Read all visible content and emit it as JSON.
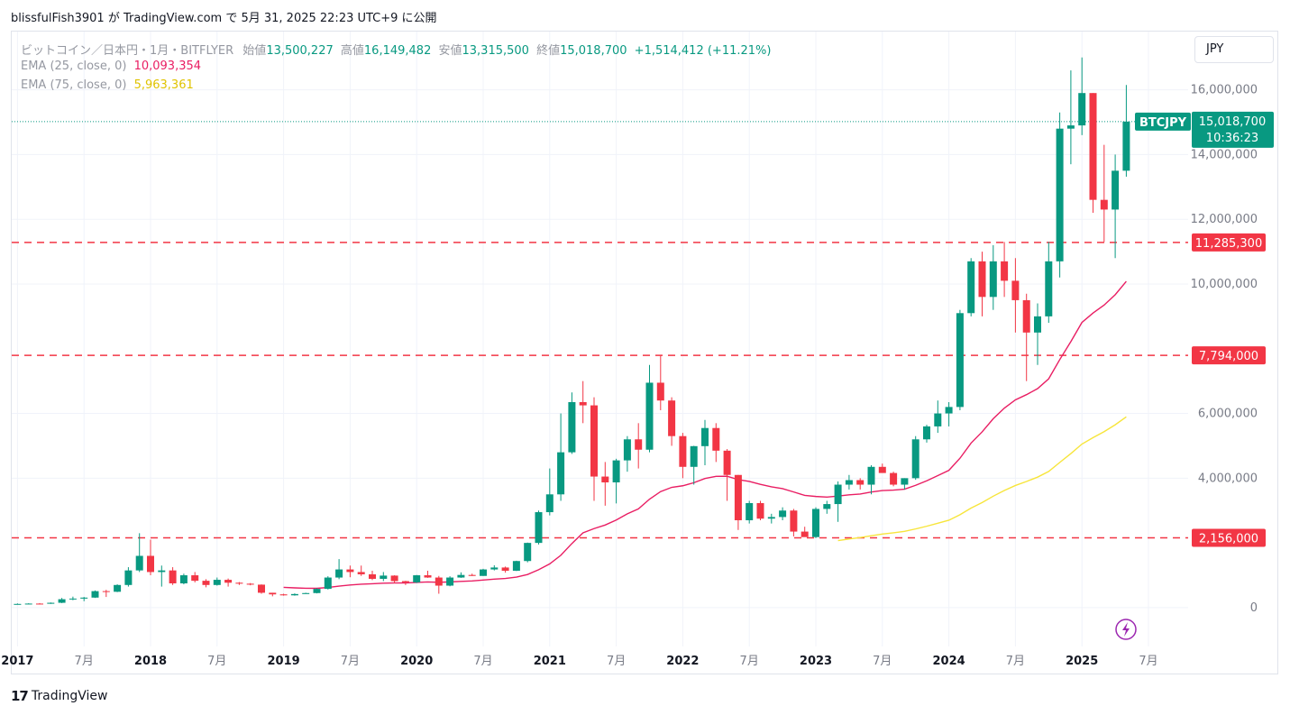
{
  "header": {
    "text": "blissfulFish3901 が TradingView.com で 5月 31, 2025 22:23 UTC+9 に公開"
  },
  "legend": {
    "symbol_title": "ビットコイン／日本円・1月・BITFLYER",
    "open_label": "始値",
    "open": "13,500,227",
    "high_label": "高値",
    "high": "16,149,482",
    "low_label": "安値",
    "low": "13,315,500",
    "close_label": "終値",
    "close": "15,018,700",
    "change": "+1,514,412 (+11.21%)",
    "ema25_label": "EMA (25, close, 0)",
    "ema25_value": "10,093,354",
    "ema75_label": "EMA (75, close, 0)",
    "ema75_value": "5,963,361"
  },
  "currency_button": "JPY",
  "price_tag": {
    "symbol": "BTCJPY",
    "price": "15,018,700",
    "countdown": "10:36:23"
  },
  "footer": {
    "brand": "TradingView"
  },
  "colors": {
    "up": "#089981",
    "down": "#f23645",
    "ema25": "#e91e63",
    "ema75": "#f7e53b",
    "hline": "#f23645",
    "axis_text": "#787b86",
    "grid": "#f0f3fa"
  },
  "chart_data": {
    "type": "candlestick",
    "y_range": [
      -1200000,
      17800000
    ],
    "y_ticks": [
      {
        "value": 0,
        "label": "0"
      },
      {
        "value": 4000000,
        "label": "4,000,000"
      },
      {
        "value": 6000000,
        "label": "6,000,000"
      },
      {
        "value": 10000000,
        "label": "10,000,000"
      },
      {
        "value": 12000000,
        "label": "12,000,000"
      },
      {
        "value": 14000000,
        "label": "14,000,000"
      },
      {
        "value": 16000000,
        "label": "16,000,000"
      }
    ],
    "x_ticks": [
      {
        "index": -12,
        "label": "2017",
        "bold": true
      },
      {
        "index": -6,
        "label": "7月",
        "bold": false
      },
      {
        "index": 0,
        "label": "2018",
        "bold": true
      },
      {
        "index": 6,
        "label": "7月",
        "bold": false
      },
      {
        "index": 12,
        "label": "2019",
        "bold": true
      },
      {
        "index": 18,
        "label": "7月",
        "bold": false
      },
      {
        "index": 24,
        "label": "2020",
        "bold": true
      },
      {
        "index": 30,
        "label": "7月",
        "bold": false
      },
      {
        "index": 36,
        "label": "2021",
        "bold": true
      },
      {
        "index": 42,
        "label": "7月",
        "bold": false
      },
      {
        "index": 48,
        "label": "2022",
        "bold": true
      },
      {
        "index": 54,
        "label": "7月",
        "bold": false
      },
      {
        "index": 60,
        "label": "2023",
        "bold": true
      },
      {
        "index": 66,
        "label": "7月",
        "bold": false
      },
      {
        "index": 72,
        "label": "2024",
        "bold": true
      },
      {
        "index": 78,
        "label": "7月",
        "bold": false
      },
      {
        "index": 84,
        "label": "2025",
        "bold": true
      },
      {
        "index": 90,
        "label": "7月",
        "bold": false
      }
    ],
    "horizontal_lines": [
      {
        "value": 11285300,
        "label": "11,285,300"
      },
      {
        "value": 7794000,
        "label": "7,794,000"
      },
      {
        "value": 2156000,
        "label": "2,156,000"
      }
    ],
    "current_price": 15018700,
    "candles": [
      {
        "t": "2017-01",
        "o": 110000,
        "h": 130000,
        "l": 100000,
        "c": 115000
      },
      {
        "t": "2017-02",
        "o": 115000,
        "h": 135000,
        "l": 110000,
        "c": 125000
      },
      {
        "t": "2017-03",
        "o": 125000,
        "h": 140000,
        "l": 100000,
        "c": 120000
      },
      {
        "t": "2017-04",
        "o": 120000,
        "h": 160000,
        "l": 115000,
        "c": 150000
      },
      {
        "t": "2017-05",
        "o": 150000,
        "h": 300000,
        "l": 140000,
        "c": 260000
      },
      {
        "t": "2017-06",
        "o": 260000,
        "h": 340000,
        "l": 230000,
        "c": 280000
      },
      {
        "t": "2017-07",
        "o": 280000,
        "h": 330000,
        "l": 200000,
        "c": 310000
      },
      {
        "t": "2017-08",
        "o": 310000,
        "h": 530000,
        "l": 300000,
        "c": 510000
      },
      {
        "t": "2017-09",
        "o": 510000,
        "h": 550000,
        "l": 330000,
        "c": 490000
      },
      {
        "t": "2017-10",
        "o": 490000,
        "h": 720000,
        "l": 480000,
        "c": 700000
      },
      {
        "t": "2017-11",
        "o": 700000,
        "h": 1250000,
        "l": 650000,
        "c": 1150000
      },
      {
        "t": "2017-12",
        "o": 1150000,
        "h": 2300000,
        "l": 1100000,
        "c": 1600000
      },
      {
        "t": "2018-01",
        "o": 1600000,
        "h": 2100000,
        "l": 1000000,
        "c": 1100000
      },
      {
        "t": "2018-02",
        "o": 1100000,
        "h": 1300000,
        "l": 650000,
        "c": 1150000
      },
      {
        "t": "2018-03",
        "o": 1150000,
        "h": 1250000,
        "l": 700000,
        "c": 750000
      },
      {
        "t": "2018-04",
        "o": 750000,
        "h": 1050000,
        "l": 720000,
        "c": 1000000
      },
      {
        "t": "2018-05",
        "o": 1000000,
        "h": 1100000,
        "l": 780000,
        "c": 830000
      },
      {
        "t": "2018-06",
        "o": 830000,
        "h": 880000,
        "l": 630000,
        "c": 700000
      },
      {
        "t": "2018-07",
        "o": 700000,
        "h": 930000,
        "l": 680000,
        "c": 860000
      },
      {
        "t": "2018-08",
        "o": 860000,
        "h": 900000,
        "l": 650000,
        "c": 770000
      },
      {
        "t": "2018-09",
        "o": 770000,
        "h": 790000,
        "l": 700000,
        "c": 740000
      },
      {
        "t": "2018-10",
        "o": 740000,
        "h": 760000,
        "l": 690000,
        "c": 710000
      },
      {
        "t": "2018-11",
        "o": 710000,
        "h": 720000,
        "l": 430000,
        "c": 460000
      },
      {
        "t": "2018-12",
        "o": 460000,
        "h": 460000,
        "l": 350000,
        "c": 410000
      },
      {
        "t": "2019-01",
        "o": 410000,
        "h": 430000,
        "l": 370000,
        "c": 380000
      },
      {
        "t": "2019-02",
        "o": 380000,
        "h": 440000,
        "l": 370000,
        "c": 420000
      },
      {
        "t": "2019-03",
        "o": 420000,
        "h": 460000,
        "l": 430000,
        "c": 450000
      },
      {
        "t": "2019-04",
        "o": 450000,
        "h": 600000,
        "l": 440000,
        "c": 580000
      },
      {
        "t": "2019-05",
        "o": 580000,
        "h": 970000,
        "l": 560000,
        "c": 930000
      },
      {
        "t": "2019-06",
        "o": 930000,
        "h": 1500000,
        "l": 880000,
        "c": 1180000
      },
      {
        "t": "2019-07",
        "o": 1180000,
        "h": 1300000,
        "l": 940000,
        "c": 1100000
      },
      {
        "t": "2019-08",
        "o": 1100000,
        "h": 1300000,
        "l": 980000,
        "c": 1030000
      },
      {
        "t": "2019-09",
        "o": 1030000,
        "h": 1140000,
        "l": 850000,
        "c": 890000
      },
      {
        "t": "2019-10",
        "o": 890000,
        "h": 1100000,
        "l": 820000,
        "c": 990000
      },
      {
        "t": "2019-11",
        "o": 990000,
        "h": 1000000,
        "l": 750000,
        "c": 820000
      },
      {
        "t": "2019-12",
        "o": 820000,
        "h": 830000,
        "l": 700000,
        "c": 780000
      },
      {
        "t": "2020-01",
        "o": 780000,
        "h": 1010000,
        "l": 760000,
        "c": 1000000
      },
      {
        "t": "2020-02",
        "o": 1000000,
        "h": 1140000,
        "l": 920000,
        "c": 930000
      },
      {
        "t": "2020-03",
        "o": 930000,
        "h": 980000,
        "l": 430000,
        "c": 680000
      },
      {
        "t": "2020-04",
        "o": 680000,
        "h": 970000,
        "l": 660000,
        "c": 930000
      },
      {
        "t": "2020-05",
        "o": 930000,
        "h": 1090000,
        "l": 920000,
        "c": 1010000
      },
      {
        "t": "2020-06",
        "o": 1010000,
        "h": 1050000,
        "l": 980000,
        "c": 980000
      },
      {
        "t": "2020-07",
        "o": 980000,
        "h": 1200000,
        "l": 980000,
        "c": 1180000
      },
      {
        "t": "2020-08",
        "o": 1180000,
        "h": 1310000,
        "l": 1150000,
        "c": 1240000
      },
      {
        "t": "2020-09",
        "o": 1240000,
        "h": 1270000,
        "l": 1080000,
        "c": 1140000
      },
      {
        "t": "2020-10",
        "o": 1140000,
        "h": 1450000,
        "l": 1130000,
        "c": 1440000
      },
      {
        "t": "2020-11",
        "o": 1440000,
        "h": 2010000,
        "l": 1400000,
        "c": 2000000
      },
      {
        "t": "2020-12",
        "o": 2000000,
        "h": 3000000,
        "l": 1950000,
        "c": 2950000
      },
      {
        "t": "2021-01",
        "o": 2950000,
        "h": 4300000,
        "l": 2850000,
        "c": 3500000
      },
      {
        "t": "2021-02",
        "o": 3500000,
        "h": 6000000,
        "l": 3300000,
        "c": 4800000
      },
      {
        "t": "2021-03",
        "o": 4800000,
        "h": 6650000,
        "l": 4750000,
        "c": 6350000
      },
      {
        "t": "2021-04",
        "o": 6350000,
        "h": 7000000,
        "l": 5700000,
        "c": 6250000
      },
      {
        "t": "2021-05",
        "o": 6250000,
        "h": 6500000,
        "l": 3300000,
        "c": 4050000
      },
      {
        "t": "2021-06",
        "o": 4050000,
        "h": 4500000,
        "l": 3150000,
        "c": 3870000
      },
      {
        "t": "2021-07",
        "o": 3870000,
        "h": 4600000,
        "l": 3220000,
        "c": 4550000
      },
      {
        "t": "2021-08",
        "o": 4550000,
        "h": 5300000,
        "l": 4200000,
        "c": 5200000
      },
      {
        "t": "2021-09",
        "o": 5200000,
        "h": 5700000,
        "l": 4300000,
        "c": 4880000
      },
      {
        "t": "2021-10",
        "o": 4880000,
        "h": 7500000,
        "l": 4800000,
        "c": 6950000
      },
      {
        "t": "2021-11",
        "o": 6950000,
        "h": 7800000,
        "l": 6100000,
        "c": 6400000
      },
      {
        "t": "2021-12",
        "o": 6400000,
        "h": 6500000,
        "l": 5000000,
        "c": 5300000
      },
      {
        "t": "2022-01",
        "o": 5300000,
        "h": 5400000,
        "l": 4000000,
        "c": 4350000
      },
      {
        "t": "2022-02",
        "o": 4350000,
        "h": 5000000,
        "l": 3800000,
        "c": 4990000
      },
      {
        "t": "2022-03",
        "o": 4990000,
        "h": 5800000,
        "l": 4400000,
        "c": 5550000
      },
      {
        "t": "2022-04",
        "o": 5550000,
        "h": 5700000,
        "l": 4500000,
        "c": 4850000
      },
      {
        "t": "2022-05",
        "o": 4850000,
        "h": 4900000,
        "l": 3300000,
        "c": 4100000
      },
      {
        "t": "2022-06",
        "o": 4100000,
        "h": 4100000,
        "l": 2400000,
        "c": 2700000
      },
      {
        "t": "2022-07",
        "o": 2700000,
        "h": 3300000,
        "l": 2600000,
        "c": 3230000
      },
      {
        "t": "2022-08",
        "o": 3230000,
        "h": 3300000,
        "l": 2700000,
        "c": 2750000
      },
      {
        "t": "2022-09",
        "o": 2750000,
        "h": 2900000,
        "l": 2600000,
        "c": 2800000
      },
      {
        "t": "2022-10",
        "o": 2800000,
        "h": 3100000,
        "l": 2700000,
        "c": 3000000
      },
      {
        "t": "2022-11",
        "o": 3000000,
        "h": 3050000,
        "l": 2200000,
        "c": 2350000
      },
      {
        "t": "2022-12",
        "o": 2350000,
        "h": 2500000,
        "l": 2200000,
        "c": 2180000
      },
      {
        "t": "2023-01",
        "o": 2180000,
        "h": 3100000,
        "l": 2150000,
        "c": 3050000
      },
      {
        "t": "2023-02",
        "o": 3050000,
        "h": 3300000,
        "l": 2900000,
        "c": 3200000
      },
      {
        "t": "2023-03",
        "o": 3200000,
        "h": 3900000,
        "l": 2650000,
        "c": 3800000
      },
      {
        "t": "2023-04",
        "o": 3800000,
        "h": 4100000,
        "l": 3650000,
        "c": 3940000
      },
      {
        "t": "2023-05",
        "o": 3940000,
        "h": 4000000,
        "l": 3650000,
        "c": 3800000
      },
      {
        "t": "2023-06",
        "o": 3800000,
        "h": 4400000,
        "l": 3500000,
        "c": 4350000
      },
      {
        "t": "2023-07",
        "o": 4350000,
        "h": 4450000,
        "l": 4200000,
        "c": 4160000
      },
      {
        "t": "2023-08",
        "o": 4160000,
        "h": 4200000,
        "l": 3750000,
        "c": 3800000
      },
      {
        "t": "2023-09",
        "o": 3800000,
        "h": 4000000,
        "l": 3650000,
        "c": 4000000
      },
      {
        "t": "2023-10",
        "o": 4000000,
        "h": 5300000,
        "l": 3950000,
        "c": 5200000
      },
      {
        "t": "2023-11",
        "o": 5200000,
        "h": 5650000,
        "l": 5100000,
        "c": 5600000
      },
      {
        "t": "2023-12",
        "o": 5600000,
        "h": 6400000,
        "l": 5400000,
        "c": 6000000
      },
      {
        "t": "2024-01",
        "o": 6000000,
        "h": 6350000,
        "l": 5600000,
        "c": 6200000
      },
      {
        "t": "2024-02",
        "o": 6200000,
        "h": 9200000,
        "l": 6100000,
        "c": 9100000
      },
      {
        "t": "2024-03",
        "o": 9100000,
        "h": 10800000,
        "l": 9000000,
        "c": 10700000
      },
      {
        "t": "2024-04",
        "o": 10700000,
        "h": 11000000,
        "l": 9000000,
        "c": 9600000
      },
      {
        "t": "2024-05",
        "o": 9600000,
        "h": 11200000,
        "l": 9200000,
        "c": 10700000
      },
      {
        "t": "2024-06",
        "o": 10700000,
        "h": 11300000,
        "l": 9600000,
        "c": 10100000
      },
      {
        "t": "2024-07",
        "o": 10100000,
        "h": 10800000,
        "l": 8500000,
        "c": 9500000
      },
      {
        "t": "2024-08",
        "o": 9500000,
        "h": 9700000,
        "l": 7000000,
        "c": 8500000
      },
      {
        "t": "2024-09",
        "o": 8500000,
        "h": 9400000,
        "l": 7500000,
        "c": 9000000
      },
      {
        "t": "2024-10",
        "o": 9000000,
        "h": 11300000,
        "l": 8800000,
        "c": 10700000
      },
      {
        "t": "2024-11",
        "o": 10700000,
        "h": 15300000,
        "l": 10200000,
        "c": 14800000
      },
      {
        "t": "2024-12",
        "o": 14800000,
        "h": 16600000,
        "l": 13700000,
        "c": 14900000
      },
      {
        "t": "2025-01",
        "o": 14900000,
        "h": 17000000,
        "l": 14600000,
        "c": 15900000
      },
      {
        "t": "2025-02",
        "o": 15900000,
        "h": 15900000,
        "l": 12200000,
        "c": 12600000
      },
      {
        "t": "2025-03",
        "o": 12600000,
        "h": 14300000,
        "l": 11300000,
        "c": 12300000
      },
      {
        "t": "2025-04",
        "o": 12300000,
        "h": 14000000,
        "l": 10800000,
        "c": 13500227
      },
      {
        "t": "2025-05",
        "o": 13500227,
        "h": 16149482,
        "l": 13315500,
        "c": 15018700
      }
    ]
  }
}
